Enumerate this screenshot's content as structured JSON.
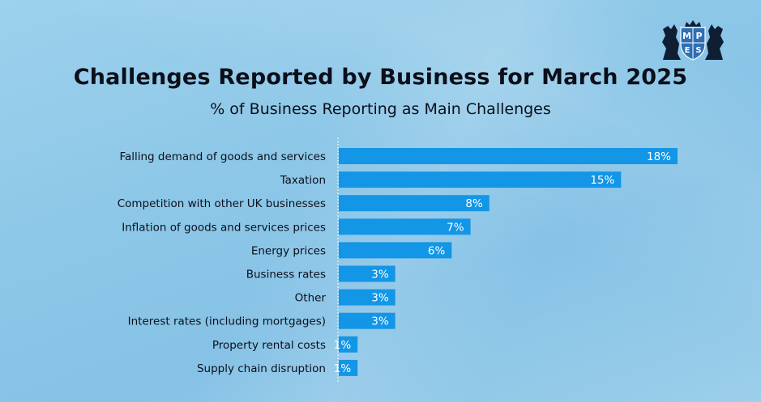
{
  "header": {
    "title": "Challenges Reported by Business for March 2025",
    "subtitle": "% of Business Reporting as Main Challenges"
  },
  "logo": {
    "letters": [
      "M",
      "P",
      "E",
      "S"
    ]
  },
  "colors": {
    "bar": "#1396e6",
    "axis": "#ffffff"
  },
  "chart_data": {
    "type": "bar",
    "orientation": "horizontal",
    "title": "Challenges Reported by Business for March 2025",
    "subtitle": "% of Business Reporting as Main Challenges",
    "categories": [
      "Falling demand of goods and services",
      "Taxation",
      "Competition with other UK businesses",
      "Inflation of goods and services prices",
      "Energy prices",
      "Business rates",
      "Other",
      "Interest rates (including mortgages)",
      "Property rental costs",
      "Supply chain disruption"
    ],
    "values": [
      18,
      15,
      8,
      7,
      6,
      3,
      3,
      3,
      1,
      1
    ],
    "value_labels": [
      "18%",
      "15%",
      "8%",
      "7%",
      "6%",
      "3%",
      "3%",
      "3%",
      "1%",
      "1%"
    ],
    "xlim": [
      0,
      18
    ],
    "grid": false,
    "legend": "none"
  }
}
